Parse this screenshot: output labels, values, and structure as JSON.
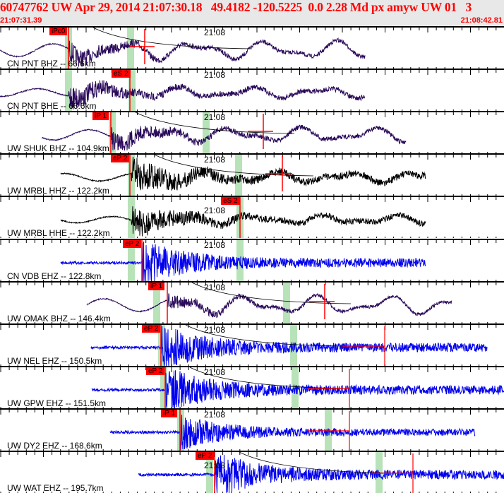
{
  "header": {
    "title": "60747762 UW Apr 29, 2014 21:07:30.18   49.4182 -120.5225  0.0 2.28 Md px amyw UW 01   3",
    "start_time": "21:07:31.39",
    "end_time": "21:08:42.81",
    "background": "#e8e8e8",
    "text_color": "#ff0000"
  },
  "minute_mark": "21:08",
  "pick_color": "#ff0000",
  "window_color": "#b8e2b8",
  "traces": [
    {
      "label": "CN PNT BHZ -- 66.6km",
      "pick": "iPc0",
      "color": "#2a0a5a"
    },
    {
      "label": "CN PNT BHE -- 66.6km",
      "pick": "eS 2",
      "color": "#2a0a5a"
    },
    {
      "label": "UW SHUK BHZ -- 104.9km",
      "pick": "iP 1",
      "color": "#2a0a5a"
    },
    {
      "label": "UW MRBL HHZ -- 122.2km",
      "pick": "eP 2",
      "color": "#000000"
    },
    {
      "label": "UW MRBL HHE -- 122.2km",
      "pick": "eS 2",
      "color": "#000000"
    },
    {
      "label": "CN VDB EHZ -- 122.8km",
      "pick": "eP 2",
      "color": "#0000ee"
    },
    {
      "label": "UW OMAK BHZ -- 146.4km",
      "pick": "iP 1",
      "color": "#2a0a5a"
    },
    {
      "label": "UW NEL EHZ -- 150.5km",
      "pick": "eP 2",
      "color": "#0000ee"
    },
    {
      "label": "UW GPW EHZ -- 151.5km",
      "pick": "eP 2",
      "color": "#0000ee"
    },
    {
      "label": "UW DY2 EHZ -- 168.6km",
      "pick": "iP 1",
      "color": "#0000ee"
    },
    {
      "label": "UW WAT EHZ -- 195.7km",
      "pick": "eP 2",
      "color": "#0000ee"
    }
  ]
}
